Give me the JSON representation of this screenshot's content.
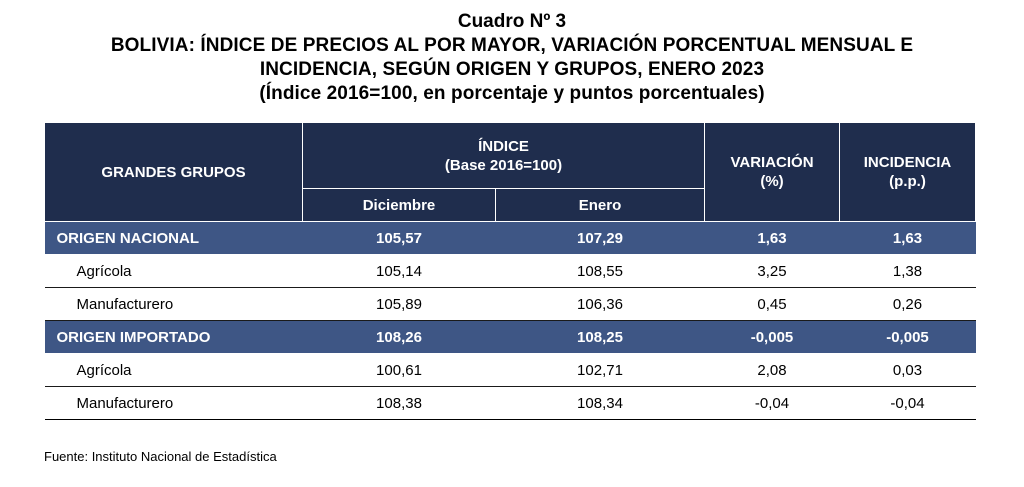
{
  "title": {
    "line1": "Cuadro Nº 3",
    "line2": "BOLIVIA: ÍNDICE DE PRECIOS AL POR MAYOR, VARIACIÓN PORCENTUAL MENSUAL E",
    "line3": "INCIDENCIA, SEGÚN ORIGEN Y GRUPOS, ENERO 2023",
    "line4": "(Índice 2016=100, en porcentaje y puntos porcentuales)"
  },
  "table": {
    "headers": {
      "grupos": "GRANDES GRUPOS",
      "indice": "ÍNDICE",
      "indice_base": "(Base 2016=100)",
      "variacion": "VARIACIÓN",
      "variacion_unit": "(%)",
      "incidencia": "INCIDENCIA",
      "incidencia_unit": "(p.p.)",
      "diciembre": "Diciembre",
      "enero": "Enero"
    },
    "rows": [
      {
        "name": "ORIGEN NACIONAL",
        "diciembre": "105,57",
        "enero": "107,29",
        "variacion": "1,63",
        "incidencia": "1,63"
      },
      {
        "name": "Agrícola",
        "diciembre": "105,14",
        "enero": "108,55",
        "variacion": "3,25",
        "incidencia": "1,38"
      },
      {
        "name": "Manufacturero",
        "diciembre": "105,89",
        "enero": "106,36",
        "variacion": "0,45",
        "incidencia": "0,26"
      },
      {
        "name": "ORIGEN IMPORTADO",
        "diciembre": "108,26",
        "enero": "108,25",
        "variacion": "-0,005",
        "incidencia": "-0,005"
      },
      {
        "name": "Agrícola",
        "diciembre": "100,61",
        "enero": "102,71",
        "variacion": "2,08",
        "incidencia": "0,03"
      },
      {
        "name": "Manufacturero",
        "diciembre": "108,38",
        "enero": "108,34",
        "variacion": "-0,04",
        "incidencia": "-0,04"
      }
    ]
  },
  "colors": {
    "header_bg": "#1f2d4d",
    "group_row_bg": "#3e5685"
  },
  "source": "Fuente: Instituto Nacional de Estadística"
}
